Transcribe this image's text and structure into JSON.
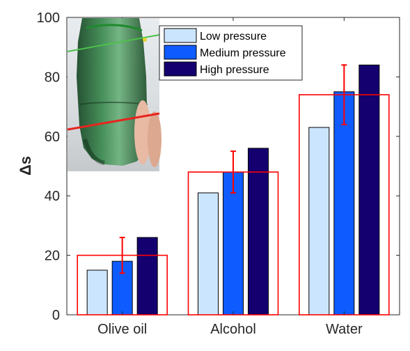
{
  "chart_data": {
    "type": "bar",
    "title": "",
    "xlabel": "",
    "ylabel": "Δs",
    "ylim": [
      0,
      100
    ],
    "yticks": [
      0,
      20,
      40,
      60,
      80,
      100
    ],
    "categories": [
      "Olive oil",
      "Alcohol",
      "Water"
    ],
    "series": [
      {
        "name": "Low pressure",
        "color": "#cce5ff",
        "values": [
          15,
          41,
          63
        ]
      },
      {
        "name": "Medium pressure",
        "color": "#0e5cff",
        "values": [
          18,
          48,
          75
        ]
      },
      {
        "name": "High pressure",
        "color": "#14006e",
        "values": [
          26,
          56,
          84
        ]
      }
    ],
    "mean_boxes": {
      "color": "#ff0000",
      "values": [
        20,
        48,
        74
      ]
    },
    "error_bars": {
      "color": "#ff0000",
      "center": [
        18,
        48,
        75
      ],
      "low": [
        14,
        41,
        64
      ],
      "high": [
        26,
        55,
        84
      ]
    },
    "legend_position": "top-left (inside axes, right of inset photo)",
    "grid": false,
    "inset_image": "photo of green plastic bottle with red and green lines drawn across it, held by fingers"
  }
}
